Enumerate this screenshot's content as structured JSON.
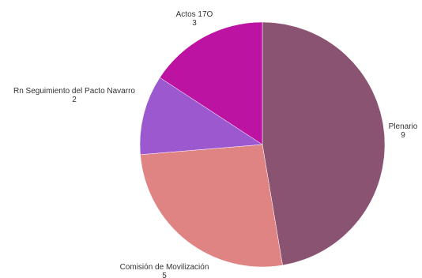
{
  "chart_data": {
    "type": "pie",
    "title": "",
    "slices": [
      {
        "label": "Plenario",
        "value": 9,
        "color": "#895371"
      },
      {
        "label": "Comisión de Movilización",
        "value": 5,
        "color": "#E08383"
      },
      {
        "label": "Rn Seguimiento del Pacto Navarro",
        "value": 2,
        "color": "#9C59CF"
      },
      {
        "label": "Actos 17O",
        "value": 3,
        "color": "#BC13A3"
      }
    ],
    "start_angle_deg": 0,
    "direction": "clockwise",
    "legend": "none",
    "data_labels": "outside"
  }
}
